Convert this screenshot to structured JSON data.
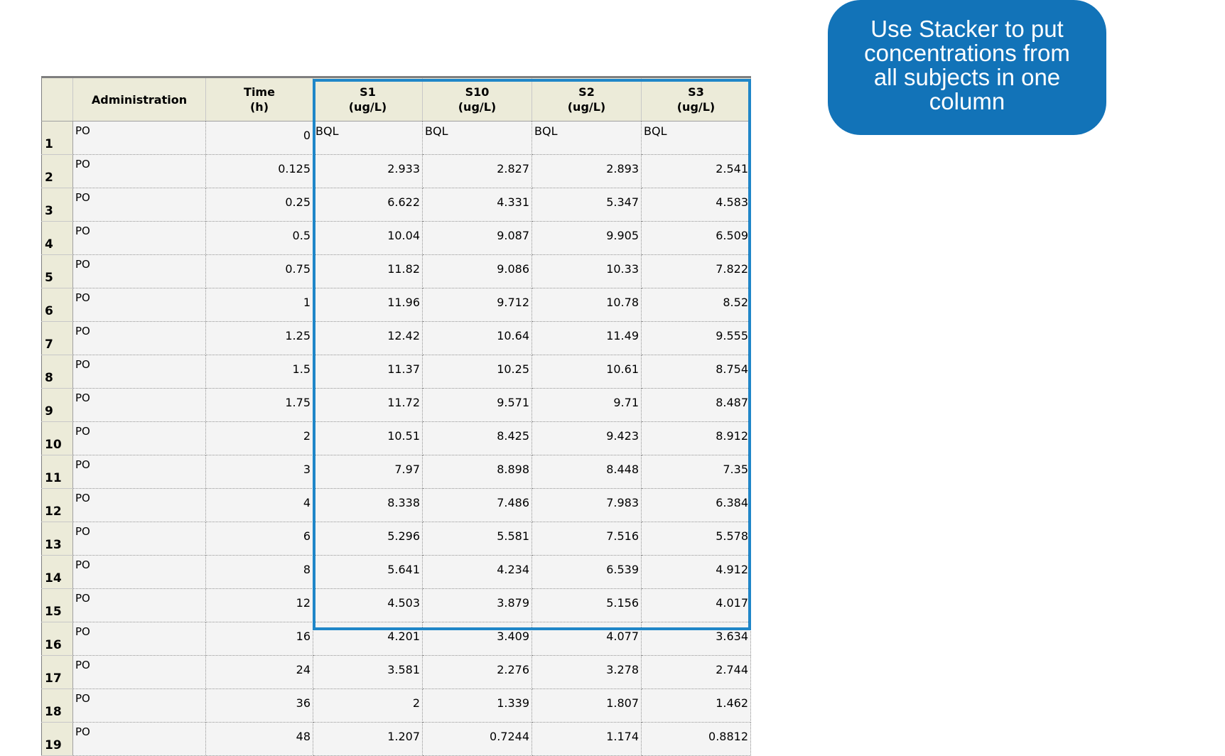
{
  "callout": {
    "text": "Use Stacker to put concentrations from all subjects in one column",
    "bg_color": "#1273b8"
  },
  "grid": {
    "highlight_color": "#1f86c8",
    "columns": [
      {
        "line1": "",
        "line2": ""
      },
      {
        "line1": "Administration",
        "line2": ""
      },
      {
        "line1": "Time",
        "line2": "(h)"
      },
      {
        "line1": "S1",
        "line2": "(ug/L)"
      },
      {
        "line1": "S10",
        "line2": "(ug/L)"
      },
      {
        "line1": "S2",
        "line2": "(ug/L)"
      },
      {
        "line1": "S3",
        "line2": "(ug/L)"
      }
    ],
    "rows": [
      {
        "n": "1",
        "admin": "PO",
        "time": "0",
        "s1": "BQL",
        "s10": "BQL",
        "s2": "BQL",
        "s3": "BQL"
      },
      {
        "n": "2",
        "admin": "PO",
        "time": "0.125",
        "s1": "2.933",
        "s10": "2.827",
        "s2": "2.893",
        "s3": "2.541"
      },
      {
        "n": "3",
        "admin": "PO",
        "time": "0.25",
        "s1": "6.622",
        "s10": "4.331",
        "s2": "5.347",
        "s3": "4.583"
      },
      {
        "n": "4",
        "admin": "PO",
        "time": "0.5",
        "s1": "10.04",
        "s10": "9.087",
        "s2": "9.905",
        "s3": "6.509"
      },
      {
        "n": "5",
        "admin": "PO",
        "time": "0.75",
        "s1": "11.82",
        "s10": "9.086",
        "s2": "10.33",
        "s3": "7.822"
      },
      {
        "n": "6",
        "admin": "PO",
        "time": "1",
        "s1": "11.96",
        "s10": "9.712",
        "s2": "10.78",
        "s3": "8.52"
      },
      {
        "n": "7",
        "admin": "PO",
        "time": "1.25",
        "s1": "12.42",
        "s10": "10.64",
        "s2": "11.49",
        "s3": "9.555"
      },
      {
        "n": "8",
        "admin": "PO",
        "time": "1.5",
        "s1": "11.37",
        "s10": "10.25",
        "s2": "10.61",
        "s3": "8.754"
      },
      {
        "n": "9",
        "admin": "PO",
        "time": "1.75",
        "s1": "11.72",
        "s10": "9.571",
        "s2": "9.71",
        "s3": "8.487"
      },
      {
        "n": "10",
        "admin": "PO",
        "time": "2",
        "s1": "10.51",
        "s10": "8.425",
        "s2": "9.423",
        "s3": "8.912"
      },
      {
        "n": "11",
        "admin": "PO",
        "time": "3",
        "s1": "7.97",
        "s10": "8.898",
        "s2": "8.448",
        "s3": "7.35"
      },
      {
        "n": "12",
        "admin": "PO",
        "time": "4",
        "s1": "8.338",
        "s10": "7.486",
        "s2": "7.983",
        "s3": "6.384"
      },
      {
        "n": "13",
        "admin": "PO",
        "time": "6",
        "s1": "5.296",
        "s10": "5.581",
        "s2": "7.516",
        "s3": "5.578"
      },
      {
        "n": "14",
        "admin": "PO",
        "time": "8",
        "s1": "5.641",
        "s10": "4.234",
        "s2": "6.539",
        "s3": "4.912"
      },
      {
        "n": "15",
        "admin": "PO",
        "time": "12",
        "s1": "4.503",
        "s10": "3.879",
        "s2": "5.156",
        "s3": "4.017"
      },
      {
        "n": "16",
        "admin": "PO",
        "time": "16",
        "s1": "4.201",
        "s10": "3.409",
        "s2": "4.077",
        "s3": "3.634"
      },
      {
        "n": "17",
        "admin": "PO",
        "time": "24",
        "s1": "3.581",
        "s10": "2.276",
        "s2": "3.278",
        "s3": "2.744"
      },
      {
        "n": "18",
        "admin": "PO",
        "time": "36",
        "s1": "2",
        "s10": "1.339",
        "s2": "1.807",
        "s3": "1.462"
      },
      {
        "n": "19",
        "admin": "PO",
        "time": "48",
        "s1": "1.207",
        "s10": "0.7244",
        "s2": "1.174",
        "s3": "0.8812"
      }
    ]
  }
}
